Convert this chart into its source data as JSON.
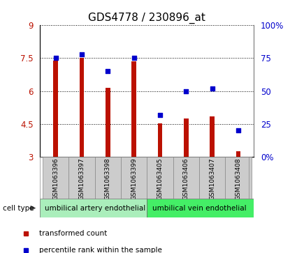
{
  "title": "GDS4778 / 230896_at",
  "samples": [
    "GSM1063396",
    "GSM1063397",
    "GSM1063398",
    "GSM1063399",
    "GSM1063405",
    "GSM1063406",
    "GSM1063407",
    "GSM1063408"
  ],
  "bar_values": [
    7.4,
    7.5,
    6.15,
    7.35,
    4.52,
    4.75,
    4.85,
    3.25
  ],
  "dot_values": [
    75,
    78,
    65,
    75,
    32,
    50,
    52,
    20
  ],
  "ylim": [
    3,
    9
  ],
  "y2lim": [
    0,
    100
  ],
  "yticks": [
    3,
    4.5,
    6,
    7.5,
    9
  ],
  "ytick_labels": [
    "3",
    "4.5",
    "6",
    "7.5",
    "9"
  ],
  "y2ticks": [
    0,
    25,
    50,
    75,
    100
  ],
  "y2tick_labels": [
    "0%",
    "25",
    "50",
    "75",
    "100%"
  ],
  "bar_color": "#bb1100",
  "dot_color": "#0000cc",
  "bar_bottom": 3,
  "cell_type_1": "umbilical artery endothelial",
  "cell_type_2": "umbilical vein endothelial",
  "legend_bar_label": "transformed count",
  "legend_dot_label": "percentile rank within the sample",
  "cell_type_label": "cell type",
  "cell_type_bg1": "#aaeebb",
  "cell_type_bg2": "#44ee66",
  "sample_bg": "#cccccc",
  "title_fontsize": 11
}
